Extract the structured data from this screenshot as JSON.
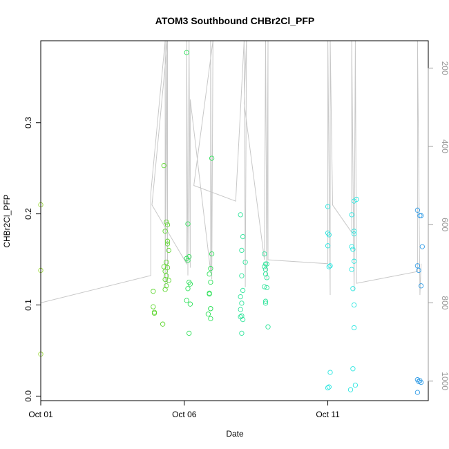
{
  "chart_data": {
    "type": "scatter",
    "title": "ATOM3 Southbound CHBr2Cl_PFP",
    "xlabel": "Date",
    "ylabel": "CHBr2Cl_PFP",
    "x_ticks": [
      {
        "date": "2016-10-01",
        "label": "Oct 01"
      },
      {
        "date": "2016-10-06",
        "label": "Oct 06"
      },
      {
        "date": "2016-10-11",
        "label": "Oct 11"
      }
    ],
    "xlim": [
      "2016-10-01T00:00",
      "2016-10-14T12:00"
    ],
    "y_ticks": [
      0.0,
      0.1,
      0.2,
      0.3
    ],
    "y_tick_labels": [
      "0.0",
      "0.1",
      "0.2",
      "0.3"
    ],
    "ylim": [
      -0.005,
      0.39
    ],
    "right_axis": {
      "label": "",
      "reversed": true,
      "ticks": [
        200,
        400,
        600,
        800,
        1000
      ],
      "tick_labels": [
        "200",
        "400",
        "600",
        "800",
        "1000"
      ],
      "range": [
        1050,
        130
      ],
      "line_color": "#c8c8c8",
      "line": [
        [
          "2016-10-01T00:00",
          130
        ],
        [
          "2016-10-01T00:00",
          800
        ],
        [
          "2016-10-04T20:00",
          730
        ],
        [
          "2016-10-04T20:00",
          520
        ],
        [
          "2016-10-05T08:00",
          130
        ],
        [
          "2016-10-05T08:00",
          760
        ],
        [
          "2016-10-05T09:00",
          130
        ],
        [
          "2016-10-05T10:00",
          750
        ],
        [
          "2016-10-05T10:00",
          130
        ],
        [
          "2016-10-04T21:00",
          550
        ],
        [
          "2016-10-06T02:00",
          700
        ],
        [
          "2016-10-06T02:00",
          130
        ],
        [
          "2016-10-06T03:00",
          730
        ],
        [
          "2016-10-06T04:00",
          130
        ],
        [
          "2016-10-06T05:00",
          710
        ],
        [
          "2016-10-06T05:00",
          280
        ],
        [
          "2016-10-06T22:00",
          720
        ],
        [
          "2016-10-06T22:00",
          130
        ],
        [
          "2016-10-06T23:00",
          740
        ],
        [
          "2016-10-07T00:00",
          130
        ],
        [
          "2016-10-06T08:00",
          500
        ],
        [
          "2016-10-07T19:00",
          540
        ],
        [
          "2016-10-08T02:00",
          130
        ],
        [
          "2016-10-08T03:00",
          760
        ],
        [
          "2016-10-08T04:00",
          130
        ],
        [
          "2016-10-08T02:00",
          290
        ],
        [
          "2016-10-08T19:00",
          690
        ],
        [
          "2016-10-08T20:00",
          130
        ],
        [
          "2016-10-08T21:00",
          740
        ],
        [
          "2016-10-08T22:00",
          130
        ],
        [
          "2016-10-08T22:00",
          690
        ],
        [
          "2016-10-11T00:00",
          700
        ],
        [
          "2016-10-11T00:00",
          130
        ],
        [
          "2016-10-11T02:00",
          780
        ],
        [
          "2016-10-11T02:00",
          130
        ],
        [
          "2016-10-11T04:00",
          550
        ],
        [
          "2016-10-11T20:00",
          620
        ],
        [
          "2016-10-11T20:00",
          130
        ],
        [
          "2016-10-11T22:00",
          770
        ],
        [
          "2016-10-11T23:00",
          130
        ],
        [
          "2016-10-12T00:00",
          750
        ],
        [
          "2016-10-14T03:00",
          720
        ],
        [
          "2016-10-14T03:00",
          130
        ],
        [
          "2016-10-14T05:00",
          780
        ],
        [
          "2016-10-14T06:00",
          700
        ]
      ]
    },
    "grid": false,
    "legend": "none",
    "series": [
      {
        "color": "#9bd63e",
        "points": [
          [
            "2016-10-01T00:00",
            0.21
          ],
          [
            "2016-10-01T00:00",
            0.138
          ],
          [
            "2016-10-01T00:00",
            0.046
          ]
        ]
      },
      {
        "color": "#5ed62f",
        "points": [
          [
            "2016-10-04T22:00",
            0.115
          ],
          [
            "2016-10-04T22:00",
            0.098
          ],
          [
            "2016-10-04T23:00",
            0.091
          ],
          [
            "2016-10-04T23:00",
            0.092
          ],
          [
            "2016-10-05T07:00",
            0.253
          ],
          [
            "2016-10-05T08:00",
            0.181
          ],
          [
            "2016-10-05T09:00",
            0.191
          ],
          [
            "2016-10-05T10:00",
            0.188
          ],
          [
            "2016-10-05T10:00",
            0.17
          ],
          [
            "2016-10-05T10:00",
            0.167
          ],
          [
            "2016-10-05T11:00",
            0.16
          ],
          [
            "2016-10-05T09:00",
            0.147
          ],
          [
            "2016-10-05T07:00",
            0.142
          ],
          [
            "2016-10-05T10:00",
            0.141
          ],
          [
            "2016-10-05T08:00",
            0.137
          ],
          [
            "2016-10-05T09:00",
            0.132
          ],
          [
            "2016-10-05T08:00",
            0.128
          ],
          [
            "2016-10-05T11:00",
            0.127
          ],
          [
            "2016-10-05T09:00",
            0.121
          ],
          [
            "2016-10-05T08:00",
            0.117
          ],
          [
            "2016-10-05T06:00",
            0.079
          ]
        ]
      },
      {
        "color": "#2fe05a",
        "points": [
          [
            "2016-10-06T02:00",
            0.377
          ],
          [
            "2016-10-06T03:00",
            0.189
          ],
          [
            "2016-10-06T04:00",
            0.153
          ],
          [
            "2016-10-06T02:00",
            0.151
          ],
          [
            "2016-10-06T03:00",
            0.149
          ],
          [
            "2016-10-06T04:00",
            0.125
          ],
          [
            "2016-10-06T05:00",
            0.123
          ],
          [
            "2016-10-06T03:00",
            0.118
          ],
          [
            "2016-10-06T02:00",
            0.105
          ],
          [
            "2016-10-06T05:00",
            0.101
          ],
          [
            "2016-10-06T04:00",
            0.069
          ],
          [
            "2016-10-06T23:00",
            0.261
          ],
          [
            "2016-10-06T23:00",
            0.156
          ],
          [
            "2016-10-06T22:00",
            0.14
          ],
          [
            "2016-10-06T21:00",
            0.134
          ],
          [
            "2016-10-06T22:00",
            0.125
          ],
          [
            "2016-10-06T21:00",
            0.113
          ],
          [
            "2016-10-06T21:00",
            0.112
          ],
          [
            "2016-10-06T22:00",
            0.096
          ],
          [
            "2016-10-06T22:00",
            0.096
          ],
          [
            "2016-10-06T20:00",
            0.09
          ],
          [
            "2016-10-06T22:00",
            0.085
          ]
        ]
      },
      {
        "color": "#2de49a",
        "points": [
          [
            "2016-10-07T23:00",
            0.199
          ],
          [
            "2016-10-08T01:00",
            0.175
          ],
          [
            "2016-10-08T00:00",
            0.16
          ],
          [
            "2016-10-08T03:00",
            0.147
          ],
          [
            "2016-10-08T00:00",
            0.132
          ],
          [
            "2016-10-08T01:00",
            0.116
          ],
          [
            "2016-10-07T23:00",
            0.109
          ],
          [
            "2016-10-08T00:00",
            0.102
          ],
          [
            "2016-10-07T23:00",
            0.095
          ],
          [
            "2016-10-08T00:00",
            0.088
          ],
          [
            "2016-10-07T23:00",
            0.087
          ],
          [
            "2016-10-08T01:00",
            0.084
          ],
          [
            "2016-10-08T00:00",
            0.069
          ],
          [
            "2016-10-08T19:00",
            0.156
          ],
          [
            "2016-10-08T20:00",
            0.145
          ],
          [
            "2016-10-08T21:00",
            0.145
          ],
          [
            "2016-10-08T19:00",
            0.142
          ],
          [
            "2016-10-08T20:00",
            0.139
          ],
          [
            "2016-10-08T20:00",
            0.134
          ],
          [
            "2016-10-08T21:00",
            0.13
          ],
          [
            "2016-10-08T19:00",
            0.12
          ],
          [
            "2016-10-08T21:00",
            0.119
          ],
          [
            "2016-10-08T20:00",
            0.104
          ],
          [
            "2016-10-08T20:00",
            0.102
          ],
          [
            "2016-10-08T22:00",
            0.076
          ]
        ]
      },
      {
        "color": "#27e6e0",
        "points": [
          [
            "2016-10-11T00:00",
            0.208
          ],
          [
            "2016-10-11T00:00",
            0.179
          ],
          [
            "2016-10-11T01:00",
            0.177
          ],
          [
            "2016-10-11T00:00",
            0.165
          ],
          [
            "2016-10-11T02:00",
            0.143
          ],
          [
            "2016-10-11T01:00",
            0.142
          ],
          [
            "2016-10-11T02:00",
            0.026
          ],
          [
            "2016-10-11T01:00",
            0.01
          ],
          [
            "2016-10-11T00:00",
            0.009
          ],
          [
            "2016-10-11T20:00",
            0.199
          ],
          [
            "2016-10-11T22:00",
            0.214
          ],
          [
            "2016-10-12T00:00",
            0.216
          ],
          [
            "2016-10-11T22:00",
            0.181
          ],
          [
            "2016-10-11T22:00",
            0.178
          ],
          [
            "2016-10-11T20:00",
            0.164
          ],
          [
            "2016-10-11T21:00",
            0.161
          ],
          [
            "2016-10-11T22:00",
            0.148
          ],
          [
            "2016-10-11T20:00",
            0.139
          ],
          [
            "2016-10-11T21:00",
            0.118
          ],
          [
            "2016-10-11T22:00",
            0.1
          ],
          [
            "2016-10-11T22:00",
            0.075
          ],
          [
            "2016-10-11T21:00",
            0.03
          ],
          [
            "2016-10-11T23:00",
            0.012
          ],
          [
            "2016-10-11T19:00",
            0.007
          ]
        ]
      },
      {
        "color": "#2f9be6",
        "points": [
          [
            "2016-10-14T03:00",
            0.204
          ],
          [
            "2016-10-14T05:00",
            0.198
          ],
          [
            "2016-10-14T06:00",
            0.198
          ],
          [
            "2016-10-14T07:00",
            0.164
          ],
          [
            "2016-10-14T03:00",
            0.143
          ],
          [
            "2016-10-14T04:00",
            0.138
          ],
          [
            "2016-10-14T06:00",
            0.121
          ],
          [
            "2016-10-14T03:00",
            0.018
          ],
          [
            "2016-10-14T05:00",
            0.017
          ],
          [
            "2016-10-14T06:00",
            0.015
          ],
          [
            "2016-10-14T04:00",
            0.016
          ],
          [
            "2016-10-14T03:00",
            0.004
          ]
        ]
      }
    ]
  }
}
